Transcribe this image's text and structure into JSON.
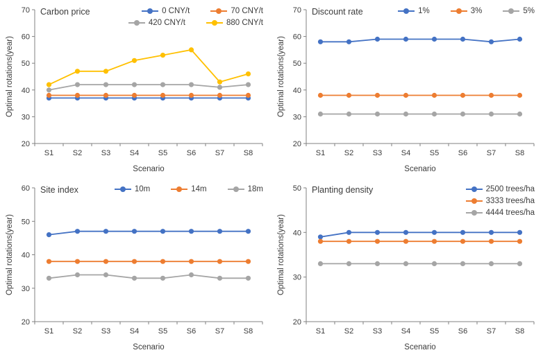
{
  "page": {
    "background": "#ffffff",
    "text_color": "#3b3b3b",
    "axis_color": "#808080"
  },
  "chart_data": [
    {
      "type": "line",
      "title": "Carbon price",
      "xlabel": "Scenario",
      "ylabel": "Optimal rotations(year)",
      "ylim": [
        20,
        70
      ],
      "ystep": 10,
      "grid": false,
      "legend_position": "top-inside",
      "legend_rows": [
        [
          0,
          1
        ],
        [
          2,
          3
        ]
      ],
      "categories": [
        "S1",
        "S2",
        "S3",
        "S4",
        "S5",
        "S6",
        "S7",
        "S8"
      ],
      "series": [
        {
          "name": "0 CNY/t",
          "color": "#4472C4",
          "values": [
            37,
            37,
            37,
            37,
            37,
            37,
            37,
            37
          ]
        },
        {
          "name": "70 CNY/t",
          "color": "#ED7D31",
          "values": [
            38,
            38,
            38,
            38,
            38,
            38,
            38,
            38
          ]
        },
        {
          "name": "420 CNY/t",
          "color": "#A5A5A5",
          "values": [
            40,
            42,
            42,
            42,
            42,
            42,
            41,
            42
          ]
        },
        {
          "name": "880 CNY/t",
          "color": "#FFC000",
          "values": [
            42,
            47,
            47,
            51,
            53,
            55,
            43,
            46
          ]
        }
      ]
    },
    {
      "type": "line",
      "title": "Discount rate",
      "xlabel": "Scenario",
      "ylabel": "Optimal rotations(year)",
      "ylim": [
        20,
        70
      ],
      "ystep": 10,
      "grid": false,
      "legend_position": "top-inside",
      "legend_rows": [
        [
          0,
          1,
          2
        ]
      ],
      "categories": [
        "S1",
        "S2",
        "S3",
        "S4",
        "S5",
        "S6",
        "S7",
        "S8"
      ],
      "series": [
        {
          "name": "1%",
          "color": "#4472C4",
          "values": [
            58,
            58,
            59,
            59,
            59,
            59,
            58,
            59
          ]
        },
        {
          "name": "3%",
          "color": "#ED7D31",
          "values": [
            38,
            38,
            38,
            38,
            38,
            38,
            38,
            38
          ]
        },
        {
          "name": "5%",
          "color": "#A5A5A5",
          "values": [
            31,
            31,
            31,
            31,
            31,
            31,
            31,
            31
          ]
        }
      ]
    },
    {
      "type": "line",
      "title": "Site index",
      "xlabel": "Scenario",
      "ylabel": "Optimal rotations(year)",
      "ylim": [
        20,
        60
      ],
      "ystep": 10,
      "grid": false,
      "legend_position": "top-inside",
      "legend_rows": [
        [
          0,
          1,
          2
        ]
      ],
      "categories": [
        "S1",
        "S2",
        "S3",
        "S4",
        "S5",
        "S6",
        "S7",
        "S8"
      ],
      "series": [
        {
          "name": "10m",
          "color": "#4472C4",
          "values": [
            46,
            47,
            47,
            47,
            47,
            47,
            47,
            47
          ]
        },
        {
          "name": "14m",
          "color": "#ED7D31",
          "values": [
            38,
            38,
            38,
            38,
            38,
            38,
            38,
            38
          ]
        },
        {
          "name": "18m",
          "color": "#A5A5A5",
          "values": [
            33,
            34,
            34,
            33,
            33,
            34,
            33,
            33
          ]
        }
      ]
    },
    {
      "type": "line",
      "title": "Planting density",
      "xlabel": "Scenario",
      "ylabel": "Optimal rotations(year)",
      "ylim": [
        20,
        50
      ],
      "ystep": 10,
      "grid": false,
      "legend_position": "top-right-inside",
      "legend_rows": [
        [
          0
        ],
        [
          1
        ],
        [
          2
        ]
      ],
      "categories": [
        "S1",
        "S2",
        "S3",
        "S4",
        "S5",
        "S6",
        "S7",
        "S8"
      ],
      "series": [
        {
          "name": "2500 trees/ha",
          "color": "#4472C4",
          "values": [
            39,
            40,
            40,
            40,
            40,
            40,
            40,
            40
          ]
        },
        {
          "name": "3333 trees/ha",
          "color": "#ED7D31",
          "values": [
            38,
            38,
            38,
            38,
            38,
            38,
            38,
            38
          ]
        },
        {
          "name": "4444 trees/ha",
          "color": "#A5A5A5",
          "values": [
            33,
            33,
            33,
            33,
            33,
            33,
            33,
            33
          ]
        }
      ]
    }
  ]
}
